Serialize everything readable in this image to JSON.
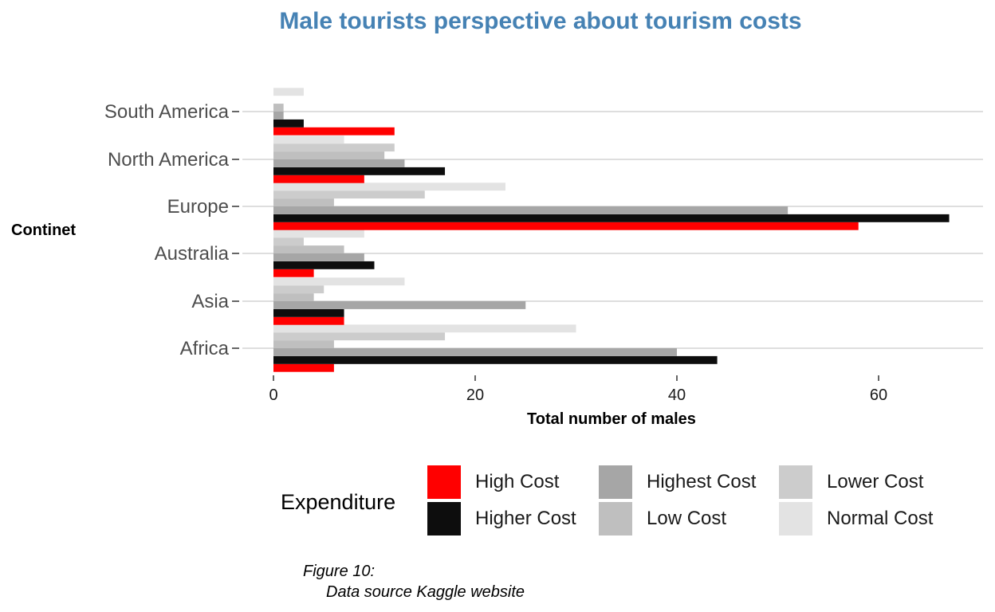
{
  "chart_data": {
    "type": "bar",
    "orientation": "horizontal",
    "title": "Male tourists perspective about tourism costs",
    "xlabel": "Total number of males",
    "ylabel": "Continet",
    "xlim": [
      0,
      70
    ],
    "x_ticks": [
      0,
      20,
      40,
      60
    ],
    "grid": "on",
    "legend_title": "Expenditure",
    "legend_position": "bottom",
    "categories": [
      "Africa",
      "Asia",
      "Australia",
      "Europe",
      "North America",
      "South America"
    ],
    "series": [
      {
        "name": "High Cost",
        "color": "#ff0000",
        "values": [
          6,
          7,
          4,
          58,
          9,
          12
        ]
      },
      {
        "name": "Higher Cost",
        "color": "#0d0d0d",
        "values": [
          44,
          7,
          10,
          67,
          17,
          3
        ]
      },
      {
        "name": "Highest Cost",
        "color": "#a6a6a6",
        "values": [
          40,
          25,
          9,
          51,
          13,
          1
        ]
      },
      {
        "name": "Low Cost",
        "color": "#bfbfbf",
        "values": [
          6,
          4,
          7,
          6,
          11,
          1
        ]
      },
      {
        "name": "Lower Cost",
        "color": "#cccccc",
        "values": [
          17,
          5,
          3,
          15,
          12,
          0
        ]
      },
      {
        "name": "Normal Cost",
        "color": "#e3e3e3",
        "values": [
          30,
          13,
          9,
          23,
          7,
          3
        ]
      }
    ]
  },
  "caption": {
    "line1": "Figure 10:",
    "line2": "Data source Kaggle website"
  }
}
